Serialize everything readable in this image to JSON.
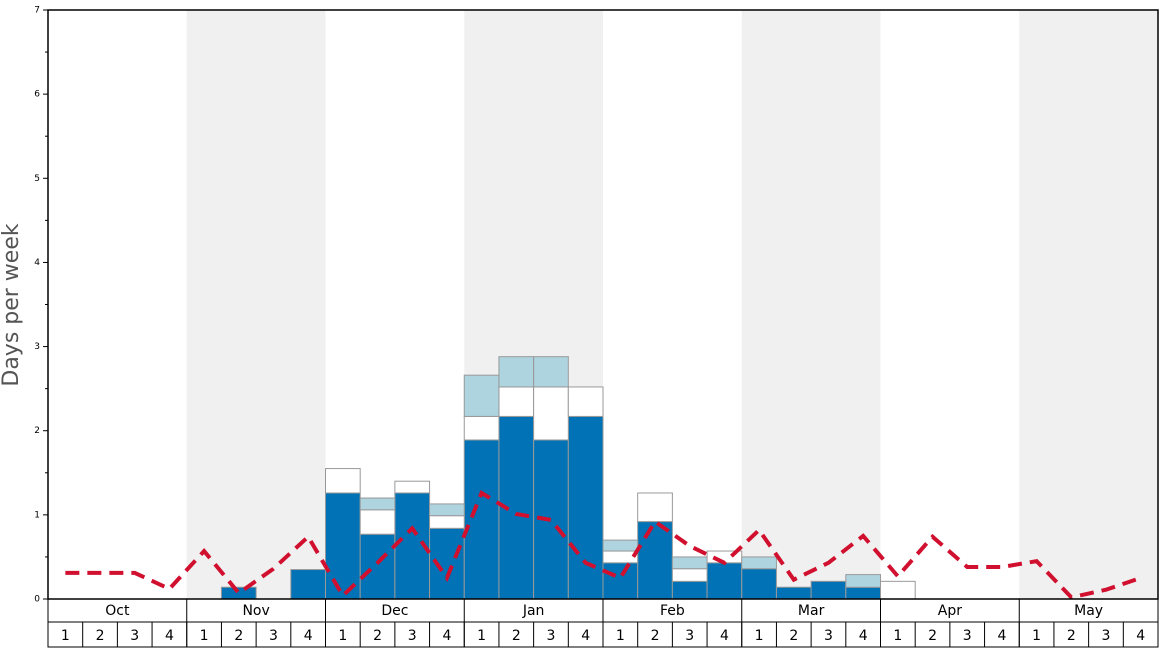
{
  "chart_data": {
    "type": "stacked-bar-line",
    "y_label": "Days per week",
    "months": [
      "Oct",
      "Nov",
      "Dec",
      "Jan",
      "Feb",
      "Mar",
      "Apr",
      "May"
    ],
    "categories": [
      "1",
      "2",
      "3",
      "4",
      "1",
      "2",
      "3",
      "4",
      "1",
      "2",
      "3",
      "4",
      "1",
      "2",
      "3",
      "4",
      "1",
      "2",
      "3",
      "4",
      "1",
      "2",
      "3",
      "4",
      "1",
      "2",
      "3",
      "4",
      "1",
      "2",
      "3",
      "4"
    ],
    "ylim": [
      0,
      7
    ],
    "yticks": [
      0,
      1,
      2,
      3,
      4,
      5,
      6,
      7
    ],
    "series": [
      {
        "kind": "bar",
        "color": "#0072b5",
        "values": [
          null,
          null,
          null,
          null,
          null,
          0.14,
          null,
          0.35,
          1.26,
          0.77,
          1.26,
          0.84,
          1.89,
          2.17,
          1.89,
          2.17,
          0.43,
          0.92,
          0.21,
          0.43,
          0.36,
          0.14,
          0.21,
          0.14,
          null,
          null,
          null,
          null,
          null,
          null,
          null,
          null
        ]
      },
      {
        "kind": "bar",
        "color": "#ffffff",
        "values": [
          null,
          null,
          null,
          null,
          null,
          null,
          null,
          null,
          0.29,
          0.29,
          0.14,
          0.15,
          0.28,
          0.35,
          0.63,
          0.35,
          0.14,
          0.34,
          0.15,
          0.14,
          null,
          null,
          null,
          null,
          0.21,
          null,
          null,
          null,
          null,
          null,
          null,
          null
        ]
      },
      {
        "kind": "bar",
        "color": "#aed4e0",
        "values": [
          null,
          null,
          null,
          null,
          null,
          null,
          null,
          null,
          null,
          0.14,
          null,
          0.14,
          0.49,
          0.36,
          0.36,
          null,
          0.13,
          null,
          0.14,
          null,
          0.14,
          null,
          null,
          0.15,
          null,
          null,
          null,
          null,
          null,
          null,
          null,
          null
        ]
      },
      {
        "kind": "line",
        "color": "#d0102e",
        "values": [
          0.31,
          0.31,
          0.31,
          0.12,
          0.57,
          0.07,
          0.36,
          0.74,
          0.04,
          0.43,
          0.84,
          0.25,
          1.26,
          1.01,
          0.94,
          0.43,
          0.25,
          0.92,
          0.63,
          0.43,
          0.82,
          0.23,
          0.43,
          0.75,
          0.27,
          0.74,
          0.38,
          0.38,
          0.45,
          0.02,
          0.11,
          0.25
        ]
      }
    ]
  }
}
